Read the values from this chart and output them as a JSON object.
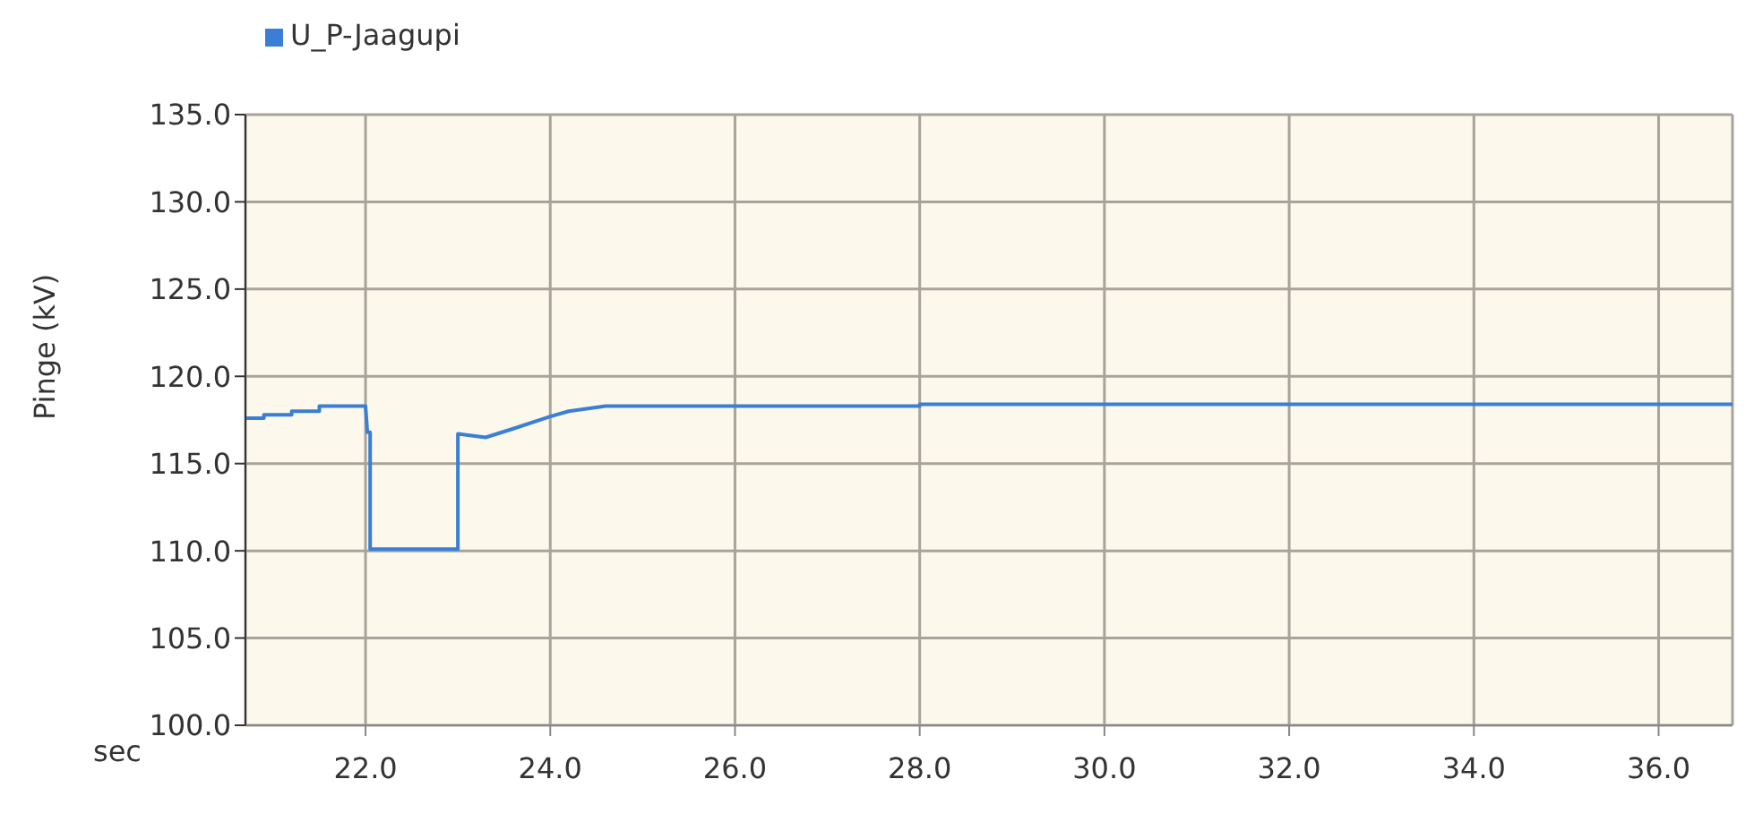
{
  "chart_data": {
    "type": "line",
    "xlabel": "sec",
    "ylabel": "Pinge (kV)",
    "xlim": [
      20.7,
      36.8
    ],
    "xticks": [
      {
        "value": 22,
        "label": "22.0"
      },
      {
        "value": 24,
        "label": "24.0"
      },
      {
        "value": 26,
        "label": "26.0"
      },
      {
        "value": 28,
        "label": "28.0"
      },
      {
        "value": 30,
        "label": "30.0"
      },
      {
        "value": 32,
        "label": "32.0"
      },
      {
        "value": 34,
        "label": "34.0"
      },
      {
        "value": 36,
        "label": "36.0"
      }
    ],
    "ylim": [
      100,
      135
    ],
    "yticks": [
      {
        "value": 100,
        "label": "100.0"
      },
      {
        "value": 105,
        "label": "105.0"
      },
      {
        "value": 110,
        "label": "110.0"
      },
      {
        "value": 115,
        "label": "115.0"
      },
      {
        "value": 120,
        "label": "120.0"
      },
      {
        "value": 125,
        "label": "125.0"
      },
      {
        "value": 130,
        "label": "130.0"
      },
      {
        "value": 135,
        "label": "135.0"
      }
    ],
    "grid": true,
    "legend": "top left",
    "series": [
      {
        "name": "U_P-Jaagupi",
        "color": "#3a7fd5",
        "x": [
          20.7,
          20.9,
          20.9,
          21.2,
          21.2,
          21.5,
          21.5,
          22.0,
          22.02,
          22.05,
          22.05,
          23.0,
          23.0,
          23.3,
          23.6,
          24.0,
          24.2,
          24.6,
          28.0,
          28.0,
          36.8
        ],
        "values": [
          117.6,
          117.6,
          117.8,
          117.8,
          118.0,
          118.0,
          118.3,
          118.3,
          116.8,
          116.8,
          110.1,
          110.1,
          116.7,
          116.5,
          117.0,
          117.7,
          118.0,
          118.3,
          118.3,
          118.4,
          118.4
        ]
      }
    ]
  }
}
